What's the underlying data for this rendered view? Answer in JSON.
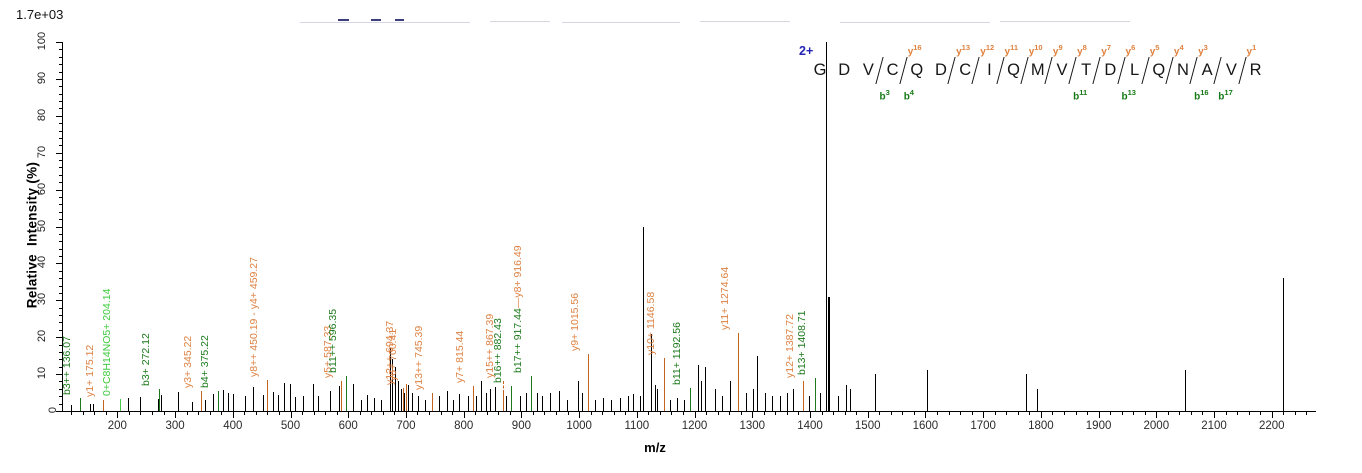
{
  "header": {
    "base_peak_intensity": "1.7e+03"
  },
  "precursor": {
    "charge_label": "2+",
    "color": "#2323b8"
  },
  "peptide": {
    "residues": [
      "G",
      "D",
      "V",
      "C",
      "Q",
      "D",
      "C",
      "I",
      "Q",
      "M",
      "V",
      "T",
      "D",
      "L",
      "Q",
      "N",
      "A",
      "V",
      "R"
    ],
    "cleavages": [
      {
        "gap": 2,
        "b": "b3"
      },
      {
        "gap": 3,
        "b": "b4",
        "y": "y16"
      },
      {
        "gap": 5,
        "y": "y13"
      },
      {
        "gap": 6,
        "y": "y12"
      },
      {
        "gap": 7,
        "y": "y11"
      },
      {
        "gap": 8,
        "y": "y10"
      },
      {
        "gap": 9,
        "y": "y9"
      },
      {
        "gap": 10,
        "y": "y8",
        "b": "b11"
      },
      {
        "gap": 11,
        "y": "y7"
      },
      {
        "gap": 12,
        "y": "y6",
        "b": "b13"
      },
      {
        "gap": 13,
        "y": "y5"
      },
      {
        "gap": 14,
        "y": "y4"
      },
      {
        "gap": 15,
        "y": "y3",
        "b": "b16"
      },
      {
        "gap": 16,
        "b": "b17"
      },
      {
        "gap": 17,
        "y": "y1"
      }
    ]
  },
  "axes": {
    "x": {
      "title": "m/z",
      "range_min": 104,
      "range_max": 2275,
      "major_tick_labels": [
        200,
        300,
        400,
        500,
        600,
        700,
        800,
        900,
        1000,
        1100,
        1200,
        1300,
        1400,
        1500,
        1600,
        1700,
        1800,
        1900,
        2000,
        2100,
        2200
      ],
      "major_tick_step": 100,
      "minor_tick_step": 20,
      "minor_first": 120,
      "minor_last": 2260
    },
    "y": {
      "title": "Relative  Intensity (%)",
      "range_min": 0,
      "range_max": 100,
      "major_tick_labels": [
        0,
        10,
        20,
        30,
        40,
        50,
        60,
        70,
        80,
        90,
        100
      ],
      "major_tick_step": 10,
      "minor_tick_step": 2
    }
  },
  "colors": {
    "y_ion_text": "#dd8142",
    "y_ion_line": "#c1651f",
    "b_ion_text": "#1c7a1c",
    "b_ion_line": "#1c7a1c",
    "neutral_text": "#3ecb3e",
    "neutral_line": "#44cc44",
    "peak_default": "#000000",
    "charge": "#2323b8"
  },
  "chart_data": {
    "type": "bar",
    "subtype": "ms2-fragmentation-stick-spectrum",
    "title": "",
    "xlabel": "m/z",
    "ylabel": "Relative  Intensity (%)",
    "xlim": [
      104,
      2275
    ],
    "ylim": [
      0,
      100
    ],
    "grid": false,
    "labeled_peaks": [
      {
        "label": "b3++ 136.07",
        "mz": 136.07,
        "pct": 2.2,
        "ion": "b",
        "leader": 5
      },
      {
        "label": "y1+ 175.12",
        "mz": 175.12,
        "pct": 1.6,
        "ion": "y",
        "leader": 5
      },
      {
        "label": "0+C8H14NO5+ 204.14",
        "mz": 204.14,
        "pct": 2.0,
        "ion": "neutral",
        "leader": 5
      },
      {
        "label": "b3+ 272.12",
        "mz": 272.12,
        "pct": 4.5,
        "ion": "b",
        "leader": 5
      },
      {
        "label": "y3+ 345.22",
        "mz": 345.22,
        "pct": 4.0,
        "ion": "y",
        "leader": 5
      },
      {
        "label": "b4+ 375.22",
        "mz": 375.22,
        "pct": 4.2,
        "ion": "b",
        "leader": 5
      },
      {
        "label": "y8++ 450.19 - y4+ 459.27",
        "mz": 459.27,
        "pct": 7.0,
        "ion": "y",
        "leader": 5
      },
      {
        "label": "y5+ 587.33",
        "mz": 587.33,
        "pct": 6.8,
        "ion": "y",
        "leader": 5
      },
      {
        "label": "b11++ 596.35",
        "mz": 596.35,
        "pct": 8.0,
        "ion": "b",
        "leader": 5
      },
      {
        "label": "y12++ 694.37",
        "mz": 694.37,
        "pct": 5.0,
        "ion": "y",
        "leader": 5
      },
      {
        "label": "y6+ 700.41",
        "mz": 700.41,
        "pct": 6.0,
        "ion": "y",
        "leader": 5
      },
      {
        "label": "y13++ 745.39",
        "mz": 745.39,
        "pct": 3.5,
        "ion": "y",
        "leader": 5
      },
      {
        "label": "y7+ 815.44",
        "mz": 815.44,
        "pct": 5.5,
        "ion": "y",
        "leader": 5
      },
      {
        "label": "y15++ 867.39",
        "mz": 867.39,
        "pct": 5.0,
        "ion": "y",
        "leader": 12,
        "dashed": true
      },
      {
        "label": "b16++ 882.43",
        "mz": 882.43,
        "pct": 5.5,
        "ion": "b",
        "leader": 5
      },
      {
        "label": "b17++ 917.44",
        "label2": "—y8+ 916.49",
        "mz": 917.44,
        "pct": 8.0,
        "ion": "b",
        "ion2": "y",
        "leader": 5
      },
      {
        "label": "y9+ 1015.56",
        "mz": 1015.56,
        "pct": 4.0,
        "ion": "y",
        "leader": 42
      },
      {
        "label": "y10+ 1146.58",
        "mz": 1146.58,
        "pct": 4.0,
        "ion": "y",
        "leader": 38
      },
      {
        "label": "b11+ 1192.56",
        "mz": 1192.56,
        "pct": 5.0,
        "ion": "b",
        "leader": 5
      },
      {
        "label": "y11+ 1274.64",
        "mz": 1274.64,
        "pct": 9.0,
        "ion": "y",
        "leader": 45
      },
      {
        "label": "y12+ 1387.72",
        "mz": 1387.72,
        "pct": 6.0,
        "ion": "y",
        "leader": 8
      },
      {
        "label": "b13+ 1408.71",
        "mz": 1408.71,
        "pct": 8.0,
        "ion": "b",
        "leader": 3
      }
    ],
    "peaks": [
      [
        120,
        1.5
      ],
      [
        152,
        2
      ],
      [
        158,
        1.8
      ],
      [
        218,
        3.4
      ],
      [
        239,
        3.9
      ],
      [
        270,
        3.3
      ],
      [
        276,
        4.4
      ],
      [
        305,
        5.2
      ],
      [
        329,
        2.5
      ],
      [
        352,
        3
      ],
      [
        366,
        4.7
      ],
      [
        383,
        5.7
      ],
      [
        392,
        5
      ],
      [
        400,
        4.5
      ],
      [
        421,
        4.2
      ],
      [
        435,
        6.5
      ],
      [
        452,
        4.3
      ],
      [
        470,
        5.2
      ],
      [
        478,
        4.3
      ],
      [
        489,
        7.6
      ],
      [
        499,
        7.3
      ],
      [
        508,
        3.9
      ],
      [
        522,
        4.2
      ],
      [
        539,
        7.3
      ],
      [
        547,
        4
      ],
      [
        568,
        5.5
      ],
      [
        584,
        6.8
      ],
      [
        608,
        7.2
      ],
      [
        622,
        3
      ],
      [
        633,
        4.3
      ],
      [
        645,
        3.5
      ],
      [
        656,
        3
      ],
      [
        672,
        17
      ],
      [
        676,
        14
      ],
      [
        681,
        12
      ],
      [
        686,
        8
      ],
      [
        691,
        6
      ],
      [
        697,
        5
      ],
      [
        703,
        7
      ],
      [
        710,
        5
      ],
      [
        721,
        4
      ],
      [
        733,
        3
      ],
      [
        757,
        4
      ],
      [
        771,
        5.5
      ],
      [
        782,
        3
      ],
      [
        792,
        4.5
      ],
      [
        808,
        4
      ],
      [
        822,
        4
      ],
      [
        830,
        8
      ],
      [
        838,
        5
      ],
      [
        845,
        6
      ],
      [
        854,
        6.5
      ],
      [
        873,
        4
      ],
      [
        897,
        4
      ],
      [
        908,
        5
      ],
      [
        927,
        5
      ],
      [
        935,
        4
      ],
      [
        949,
        5
      ],
      [
        965,
        5.5
      ],
      [
        979,
        3
      ],
      [
        998,
        8
      ],
      [
        1005,
        5
      ],
      [
        1028,
        3
      ],
      [
        1041,
        3.5
      ],
      [
        1055,
        3
      ],
      [
        1071,
        3.5
      ],
      [
        1085,
        4
      ],
      [
        1093,
        4.5
      ],
      [
        1105,
        4
      ],
      [
        1111.5,
        50
      ],
      [
        1124,
        21
      ],
      [
        1131,
        7
      ],
      [
        1135,
        6
      ],
      [
        1157,
        3
      ],
      [
        1170,
        3.5
      ],
      [
        1181,
        3
      ],
      [
        1206,
        12.5
      ],
      [
        1212,
        8
      ],
      [
        1218,
        12
      ],
      [
        1235,
        6
      ],
      [
        1248,
        4
      ],
      [
        1261,
        8
      ],
      [
        1289,
        5
      ],
      [
        1301,
        6
      ],
      [
        1309,
        15
      ],
      [
        1322,
        5
      ],
      [
        1334,
        4
      ],
      [
        1348,
        4
      ],
      [
        1360,
        5
      ],
      [
        1371,
        6
      ],
      [
        1398,
        4
      ],
      [
        1417,
        5
      ],
      [
        1428,
        100
      ],
      [
        1430.5,
        31
      ],
      [
        1449,
        4
      ],
      [
        1462,
        7
      ],
      [
        1470,
        6
      ],
      [
        1512,
        10
      ],
      [
        1602,
        11
      ],
      [
        1775,
        10
      ],
      [
        1793,
        6
      ],
      [
        2049,
        11
      ],
      [
        2219,
        36
      ]
    ],
    "precursor_peak_mz": 1428,
    "precursor_charge": "2+"
  },
  "artifacts": {
    "navy_dashes": [
      [
        338,
        19,
        11
      ],
      [
        371,
        19,
        10
      ],
      [
        395,
        19,
        9
      ]
    ],
    "gray_streaks": [
      [
        300,
        22,
        170
      ],
      [
        490,
        21,
        60
      ],
      [
        562,
        22,
        118
      ],
      [
        700,
        21,
        90
      ],
      [
        840,
        22,
        150
      ],
      [
        1000,
        21,
        130
      ]
    ]
  }
}
